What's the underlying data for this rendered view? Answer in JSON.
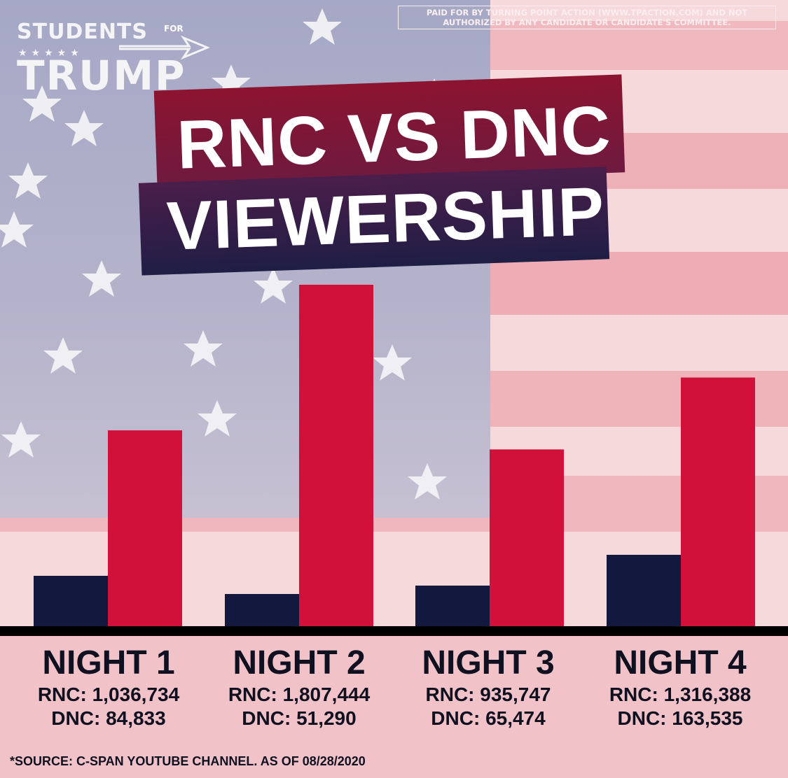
{
  "brand": {
    "line1": "STUDENTS",
    "for_text": "FOR",
    "line2": "TRUMP"
  },
  "disclaimer": "PAID FOR BY TURNING POINT ACTION (WWW.TPACTION.COM) AND NOT AUTHORIZED BY ANY CANDIDATE OR CANDIDATE'S COMMITTEE.",
  "title": {
    "line1": "RNC VS DNC",
    "line2": "VIEWERSHIP"
  },
  "colors": {
    "rnc": "#d2113a",
    "dnc": "#13183e",
    "baseline": "#000000"
  },
  "chart_data": {
    "type": "bar",
    "title": "RNC VS DNC VIEWERSHIP",
    "categories": [
      "NIGHT 1",
      "NIGHT 2",
      "NIGHT 3",
      "NIGHT 4"
    ],
    "series": [
      {
        "name": "DNC",
        "values": [
          84833,
          51290,
          65474,
          163535
        ]
      },
      {
        "name": "RNC",
        "values": [
          1036734,
          1807444,
          935747,
          1316388
        ]
      }
    ],
    "ylim": [
      0,
      2000000
    ],
    "grid": false,
    "legend": "none"
  },
  "nights": [
    {
      "title": "NIGHT 1",
      "rnc": "RNC: 1,036,734",
      "dnc": "DNC: 84,833"
    },
    {
      "title": "NIGHT 2",
      "rnc": "RNC: 1,807,444",
      "dnc": "DNC: 51,290"
    },
    {
      "title": "NIGHT 3",
      "rnc": "RNC: 935,747",
      "dnc": "DNC: 65,474"
    },
    {
      "title": "NIGHT 4",
      "rnc": "RNC: 1,316,388",
      "dnc": "DNC: 163,535"
    }
  ],
  "source": "*SOURCE: C-SPAN YOUTUBE CHANNEL. AS OF 08/28/2020"
}
